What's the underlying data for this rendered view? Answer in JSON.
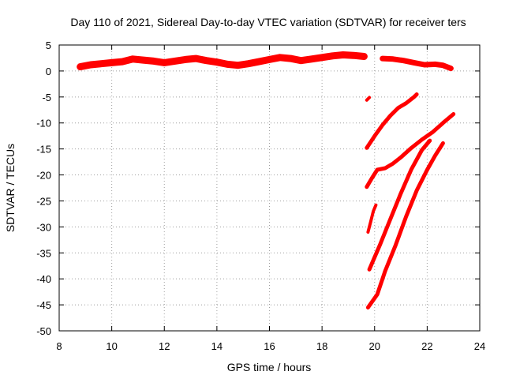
{
  "chart_data": {
    "type": "scatter",
    "title": "Day 110 of 2021, Sidereal Day-to-day VTEC variation (SDTVAR) for receiver ters",
    "xlabel": "GPS time / hours",
    "ylabel": "SDTVAR / TECUs",
    "xlim": [
      8,
      24
    ],
    "ylim": [
      -50,
      5
    ],
    "xticks": [
      8,
      10,
      12,
      14,
      16,
      18,
      20,
      22,
      24
    ],
    "yticks": [
      5,
      0,
      -5,
      -10,
      -15,
      -20,
      -25,
      -30,
      -35,
      -40,
      -45,
      -50
    ],
    "grid": true,
    "legend": "none",
    "color": "#ff0000",
    "series": [
      {
        "width": 9,
        "x": [
          8.8,
          9.2,
          9.6,
          10.0,
          10.4,
          10.8,
          11.2,
          11.6,
          12.0,
          12.4,
          12.8,
          13.2,
          13.6,
          14.0,
          14.4,
          14.8,
          15.2,
          15.6,
          16.0,
          16.4,
          16.8,
          17.2,
          17.6,
          18.0,
          18.4,
          18.8,
          19.2,
          19.6
        ],
        "y": [
          0.8,
          1.2,
          1.4,
          1.6,
          1.8,
          2.3,
          2.1,
          1.9,
          1.6,
          1.9,
          2.2,
          2.4,
          2.0,
          1.7,
          1.3,
          1.1,
          1.4,
          1.8,
          2.2,
          2.6,
          2.4,
          2.0,
          2.3,
          2.6,
          2.9,
          3.1,
          3.0,
          2.8
        ]
      },
      {
        "width": 7,
        "x": [
          20.3,
          20.7,
          21.1,
          21.5,
          21.9,
          22.3,
          22.6,
          22.9
        ],
        "y": [
          2.4,
          2.3,
          2.0,
          1.6,
          1.2,
          1.3,
          1.1,
          0.5
        ]
      },
      {
        "width": 4,
        "x": [
          19.7,
          19.8
        ],
        "y": [
          -5.6,
          -5.1
        ]
      },
      {
        "width": 5,
        "x": [
          19.7,
          20.0,
          20.3,
          20.6,
          20.9,
          21.2,
          21.5,
          21.6
        ],
        "y": [
          -14.8,
          -12.5,
          -10.4,
          -8.6,
          -7.1,
          -6.2,
          -5.0,
          -4.5
        ]
      },
      {
        "width": 5,
        "x": [
          19.7,
          19.9,
          20.1,
          20.4,
          20.7,
          21.0,
          21.4,
          21.8,
          22.2,
          22.6,
          23.0
        ],
        "y": [
          -22.3,
          -20.6,
          -19.0,
          -18.7,
          -17.8,
          -16.6,
          -14.8,
          -13.2,
          -11.8,
          -10.0,
          -8.3
        ]
      },
      {
        "width": 4,
        "x": [
          19.75,
          19.85,
          19.95,
          20.05
        ],
        "y": [
          -31.0,
          -29.0,
          -27.0,
          -25.8
        ]
      },
      {
        "width": 5,
        "x": [
          19.8,
          20.2,
          20.6,
          21.0,
          21.4,
          21.8,
          22.1
        ],
        "y": [
          -38.2,
          -33.5,
          -28.5,
          -23.5,
          -18.9,
          -15.2,
          -13.4
        ]
      },
      {
        "width": 5,
        "x": [
          19.75,
          20.1,
          20.4,
          20.8,
          21.2,
          21.6,
          22.0,
          22.3,
          22.6
        ],
        "y": [
          -45.5,
          -43.0,
          -38.5,
          -33.5,
          -28.0,
          -23.0,
          -19.0,
          -16.3,
          -13.9
        ]
      }
    ]
  }
}
